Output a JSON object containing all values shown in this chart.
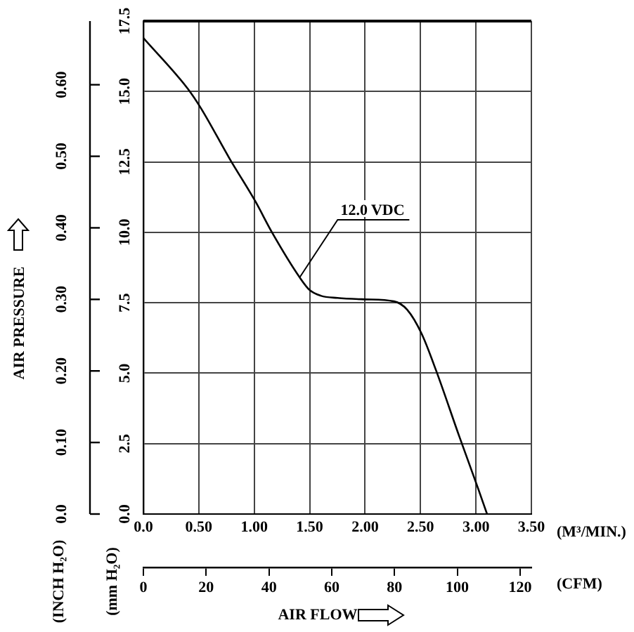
{
  "chart_data": {
    "type": "line",
    "xlabel": "(M³/MIN.)",
    "x2label": "(CFM)",
    "ylabel": "(mm H₂O)",
    "y2label": "(INCH H₂O)",
    "xlim": [
      0,
      3.5
    ],
    "xticks": [
      {
        "value": 0,
        "label": "0.0"
      },
      {
        "value": 0.5,
        "label": "0.50"
      },
      {
        "value": 1,
        "label": "1.00"
      },
      {
        "value": 1.5,
        "label": "1.50"
      },
      {
        "value": 2,
        "label": "2.00"
      },
      {
        "value": 2.5,
        "label": "2.50"
      },
      {
        "value": 3,
        "label": "3.00"
      },
      {
        "value": 3.5,
        "label": "3.50"
      }
    ],
    "x2lim": [
      0,
      123.6
    ],
    "x2ticks": [
      0,
      20,
      40,
      60,
      80,
      100,
      120
    ],
    "ylim": [
      0,
      17.5
    ],
    "yticks": [
      {
        "value": 0,
        "label": "0.0"
      },
      2.5,
      {
        "value": 5,
        "label": "5.0"
      },
      7.5,
      {
        "value": 10,
        "label": "10.0"
      },
      12.5,
      {
        "value": 15,
        "label": "15.0"
      },
      17.5
    ],
    "y2lim": [
      0,
      0.689
    ],
    "y2ticks": [
      {
        "value": 0,
        "label": "0.0"
      },
      {
        "value": 0.1,
        "label": "0.10"
      },
      {
        "value": 0.2,
        "label": "0.20"
      },
      {
        "value": 0.3,
        "label": "0.30"
      },
      {
        "value": 0.4,
        "label": "0.40"
      },
      {
        "value": 0.5,
        "label": "0.50"
      },
      {
        "value": 0.6,
        "label": "0.60"
      }
    ],
    "grid": true,
    "legend": false,
    "marker": "none",
    "line_style": "solid",
    "series": [
      {
        "color": "#000000",
        "x": [
          0,
          0.4,
          0.52,
          0.78,
          1.01,
          1.16,
          1.41,
          1.5,
          1.6,
          1.75,
          2.0,
          2.26,
          2.38,
          2.51,
          2.64,
          2.85,
          3.02,
          3.1
        ],
        "values": [
          16.9,
          15.1,
          14.4,
          12.6,
          11.1,
          10.0,
          8.4,
          7.95,
          7.75,
          7.67,
          7.62,
          7.55,
          7.25,
          6.4,
          5.1,
          2.75,
          0.9,
          0
        ]
      }
    ],
    "annotations": [
      "AIR PRESSURE",
      "AIR FLOW",
      {
        "text": "12.0 VDC",
        "x": 1.41,
        "y": 8.4
      }
    ]
  }
}
